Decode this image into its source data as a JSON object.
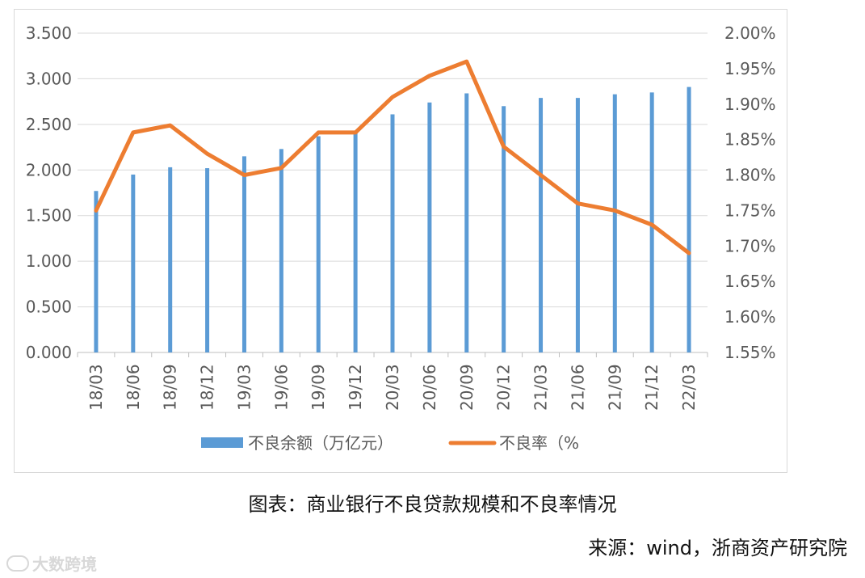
{
  "chart_data": {
    "type": "bar+line",
    "categories": [
      "18/03",
      "18/06",
      "18/09",
      "18/12",
      "19/03",
      "19/06",
      "19/09",
      "19/12",
      "20/03",
      "20/06",
      "20/09",
      "20/12",
      "21/03",
      "21/06",
      "21/09",
      "21/12",
      "22/03"
    ],
    "series": [
      {
        "name": "不良余额（万亿元）",
        "type": "bar",
        "axis": "left",
        "values": [
          1.77,
          1.95,
          2.03,
          2.02,
          2.15,
          2.23,
          2.37,
          2.41,
          2.61,
          2.74,
          2.84,
          2.7,
          2.79,
          2.79,
          2.83,
          2.85,
          2.91
        ]
      },
      {
        "name": "不良率（%",
        "type": "line",
        "axis": "right",
        "values": [
          1.75,
          1.86,
          1.87,
          1.83,
          1.8,
          1.81,
          1.86,
          1.86,
          1.91,
          1.94,
          1.96,
          1.84,
          1.8,
          1.76,
          1.75,
          1.73,
          1.69
        ]
      }
    ],
    "y_left": {
      "min": 0,
      "max": 3.5,
      "ticks": [
        "0.000",
        "0.500",
        "1.000",
        "1.500",
        "2.000",
        "2.500",
        "3.000",
        "3.500"
      ]
    },
    "y_right": {
      "min": 1.55,
      "max": 2.0,
      "ticks": [
        "1.55%",
        "1.60%",
        "1.65%",
        "1.70%",
        "1.75%",
        "1.80%",
        "1.85%",
        "1.90%",
        "1.95%",
        "2.00%"
      ]
    },
    "grid": true,
    "legend_position": "bottom",
    "colors": {
      "bar": "#5b9bd5",
      "line": "#ed7d31",
      "grid": "#d9d9d9",
      "axis_text": "#595959"
    }
  },
  "caption": "图表：商业银行不良贷款规模和不良率情况",
  "source": "来源：wind，浙商资产研究院",
  "watermark": "大数跨境"
}
